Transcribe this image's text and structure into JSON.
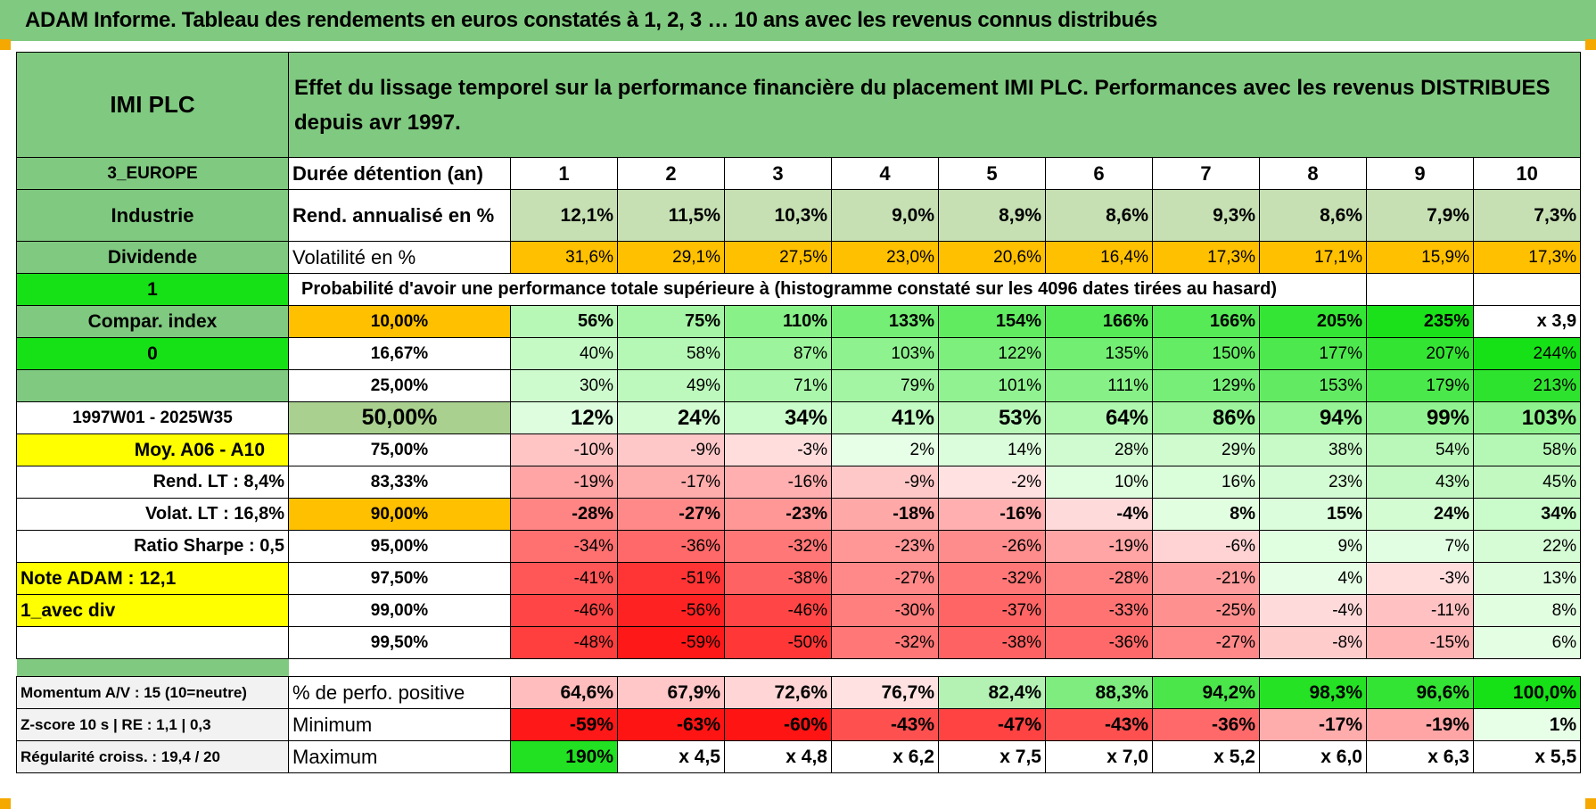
{
  "title": "ADAM Informe. Tableau des rendements en euros constatés à 1, 2, 3 … 10 ans avec les revenus connus distribués",
  "header": {
    "name": "IMI PLC",
    "description": "Effet du lissage temporel sur la performance financière du placement IMI PLC. Performances avec les revenus DISTRIBUES depuis avr 1997."
  },
  "side": {
    "region": "3_EUROPE",
    "sector": "Industrie",
    "type": "Dividende",
    "flag1": "1",
    "compar": "Compar. index",
    "flag0": "0",
    "period": "1997W01 - 2025W35",
    "moy": "Moy. A06 - A10",
    "rend_lt": "Rend. LT :   8,4%",
    "volat_lt": "Volat. LT :   16,8%",
    "sharpe": "Ratio Sharpe :    0,5",
    "note": "Note ADAM : 12,1",
    "avec_div": "1_avec div"
  },
  "labels": {
    "duree": "Durée détention (an)",
    "rend": "Rend. annualisé en %",
    "vol": "Volatilité en %",
    "prob": "Probabilité d'avoir une performance totale supérieure à (histogramme constaté sur les 4096 dates tirées au hasard)"
  },
  "years": [
    "1",
    "2",
    "3",
    "4",
    "5",
    "6",
    "7",
    "8",
    "9",
    "10"
  ],
  "rend": [
    "12,1%",
    "11,5%",
    "10,3%",
    "9,0%",
    "8,9%",
    "8,6%",
    "9,3%",
    "8,6%",
    "7,9%",
    "7,3%"
  ],
  "vol": [
    "31,6%",
    "29,1%",
    "27,5%",
    "23,0%",
    "20,6%",
    "16,4%",
    "17,3%",
    "17,1%",
    "15,9%",
    "17,3%"
  ],
  "prob_rows": [
    {
      "p": "10,00%",
      "v": [
        "56%",
        "75%",
        "110%",
        "133%",
        "154%",
        "166%",
        "166%",
        "205%",
        "235%",
        "x 3,9"
      ]
    },
    {
      "p": "16,67%",
      "v": [
        "40%",
        "58%",
        "87%",
        "103%",
        "122%",
        "135%",
        "150%",
        "177%",
        "207%",
        "244%"
      ]
    },
    {
      "p": "25,00%",
      "v": [
        "30%",
        "49%",
        "71%",
        "79%",
        "101%",
        "111%",
        "129%",
        "153%",
        "179%",
        "213%"
      ]
    },
    {
      "p": "50,00%",
      "v": [
        "12%",
        "24%",
        "34%",
        "41%",
        "53%",
        "64%",
        "86%",
        "94%",
        "99%",
        "103%"
      ]
    },
    {
      "p": "75,00%",
      "v": [
        "-10%",
        "-9%",
        "-3%",
        "2%",
        "14%",
        "28%",
        "29%",
        "38%",
        "54%",
        "58%"
      ]
    },
    {
      "p": "83,33%",
      "v": [
        "-19%",
        "-17%",
        "-16%",
        "-9%",
        "-2%",
        "10%",
        "16%",
        "23%",
        "43%",
        "45%"
      ]
    },
    {
      "p": "90,00%",
      "v": [
        "-28%",
        "-27%",
        "-23%",
        "-18%",
        "-16%",
        "-4%",
        "8%",
        "15%",
        "24%",
        "34%"
      ]
    },
    {
      "p": "95,00%",
      "v": [
        "-34%",
        "-36%",
        "-32%",
        "-23%",
        "-26%",
        "-19%",
        "-6%",
        "9%",
        "7%",
        "22%"
      ]
    },
    {
      "p": "97,50%",
      "v": [
        "-41%",
        "-51%",
        "-38%",
        "-27%",
        "-32%",
        "-28%",
        "-21%",
        "4%",
        "-3%",
        "13%"
      ]
    },
    {
      "p": "99,00%",
      "v": [
        "-46%",
        "-56%",
        "-46%",
        "-30%",
        "-37%",
        "-33%",
        "-25%",
        "-4%",
        "-11%",
        "8%"
      ]
    },
    {
      "p": "99,50%",
      "v": [
        "-48%",
        "-59%",
        "-50%",
        "-32%",
        "-38%",
        "-36%",
        "-27%",
        "-8%",
        "-15%",
        "6%"
      ]
    }
  ],
  "footer": {
    "momentum": "Momentum A/V : 15 (10=neutre)",
    "zscore": "Z-score 10 s | RE : 1,1 | 0,3",
    "regularite": "Régularité croiss. : 19,4 / 20",
    "pos_label": "% de perfo. positive",
    "min_label": "Minimum",
    "max_label": "Maximum",
    "pos": [
      "64,6%",
      "67,9%",
      "72,6%",
      "76,7%",
      "82,4%",
      "88,3%",
      "94,2%",
      "98,3%",
      "96,6%",
      "100,0%"
    ],
    "min": [
      "-59%",
      "-63%",
      "-60%",
      "-43%",
      "-47%",
      "-43%",
      "-36%",
      "-17%",
      "-19%",
      "1%"
    ],
    "max": [
      "190%",
      "x 4,5",
      "x 4,8",
      "x 6,2",
      "x 7,5",
      "x 7,0",
      "x 5,2",
      "x 6,0",
      "x 6,3",
      "x 5,5"
    ]
  },
  "colors": {
    "title_green": "#80c980",
    "bright_green": "#16e016",
    "yellow": "#ffff00",
    "orange": "#ffc000",
    "red_text": "#e0161e"
  }
}
